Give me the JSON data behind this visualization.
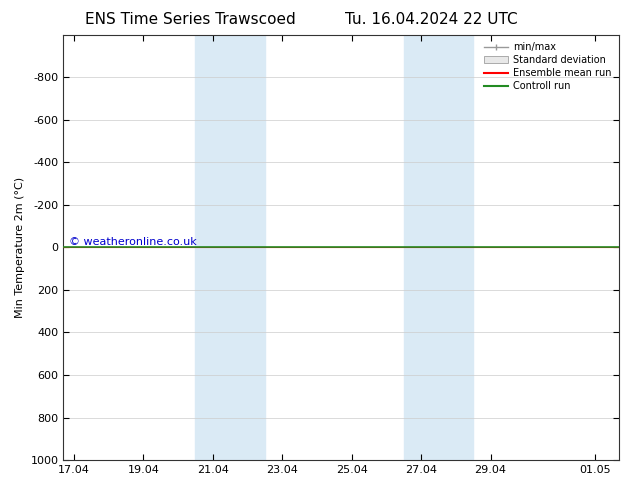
{
  "title_left": "ENS Time Series Trawscoed",
  "title_right": "Tu. 16.04.2024 22 UTC",
  "ylabel": "Min Temperature 2m (°C)",
  "ylim_bottom": -1000,
  "ylim_top": 1000,
  "yticks": [
    -800,
    -600,
    -400,
    -200,
    0,
    200,
    400,
    600,
    800,
    1000
  ],
  "xtick_labels": [
    "17.04",
    "19.04",
    "21.04",
    "23.04",
    "25.04",
    "27.04",
    "29.04",
    "01.05"
  ],
  "xtick_positions": [
    0,
    2,
    4,
    6,
    8,
    10,
    12,
    15
  ],
  "xlim": [
    -0.3,
    15.7
  ],
  "background_color": "#ffffff",
  "plot_bg_color": "#ffffff",
  "shaded_bands": [
    {
      "x_start": 3.5,
      "x_end": 5.5
    },
    {
      "x_start": 9.5,
      "x_end": 11.5
    }
  ],
  "shaded_color": "#daeaf5",
  "line_green_color": "#228B22",
  "line_red_color": "#ff0000",
  "watermark": "© weatheronline.co.uk",
  "watermark_color": "#0000cc",
  "legend_items": [
    {
      "label": "min/max",
      "color": "#999999",
      "style": "minmax"
    },
    {
      "label": "Standard deviation",
      "color": "#cccccc",
      "style": "box"
    },
    {
      "label": "Ensemble mean run",
      "color": "#ff0000",
      "style": "line"
    },
    {
      "label": "Controll run",
      "color": "#228B22",
      "style": "line"
    }
  ]
}
